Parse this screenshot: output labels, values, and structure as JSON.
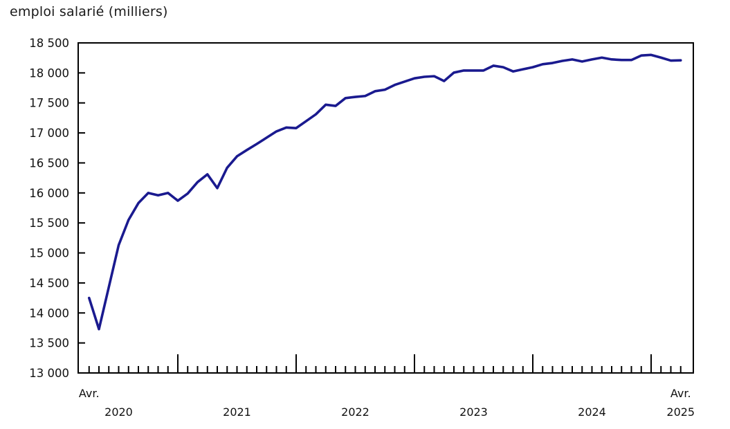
{
  "title": "emploi salarié (milliers)",
  "chart_data": {
    "type": "line",
    "title": "emploi salarié (milliers)",
    "unit": "milliers",
    "line_color": "#1a1a8f",
    "axis_color": "#000000",
    "legend": "none",
    "grid": false,
    "y_axis": {
      "min": 13000,
      "max": 18500,
      "step": 500,
      "tick_values": [
        13000,
        13500,
        14000,
        14500,
        15000,
        15500,
        16000,
        16500,
        17000,
        17500,
        18000,
        18500
      ],
      "tick_labels": [
        "13 000",
        "13 500",
        "14 000",
        "14 500",
        "15 000",
        "15 500",
        "16 000",
        "16 500",
        "17 000",
        "17 500",
        "18 000",
        "18 500"
      ]
    },
    "x_axis": {
      "frequency": "monthly",
      "start_label": "Avr.",
      "end_label": "Avr.",
      "year_labels": [
        "2020",
        "2021",
        "2022",
        "2023",
        "2024",
        "2025"
      ]
    },
    "months": [
      "2020-04",
      "2020-05",
      "2020-06",
      "2020-07",
      "2020-08",
      "2020-09",
      "2020-10",
      "2020-11",
      "2020-12",
      "2021-01",
      "2021-02",
      "2021-03",
      "2021-04",
      "2021-05",
      "2021-06",
      "2021-07",
      "2021-08",
      "2021-09",
      "2021-10",
      "2021-11",
      "2021-12",
      "2022-01",
      "2022-02",
      "2022-03",
      "2022-04",
      "2022-05",
      "2022-06",
      "2022-07",
      "2022-08",
      "2022-09",
      "2022-10",
      "2022-11",
      "2022-12",
      "2023-01",
      "2023-02",
      "2023-03",
      "2023-04",
      "2023-05",
      "2023-06",
      "2023-07",
      "2023-08",
      "2023-09",
      "2023-10",
      "2023-11",
      "2023-12",
      "2024-01",
      "2024-02",
      "2024-03",
      "2024-04",
      "2024-05",
      "2024-06",
      "2024-07",
      "2024-08",
      "2024-09",
      "2024-10",
      "2024-11",
      "2024-12",
      "2025-01",
      "2025-02",
      "2025-03",
      "2025-04"
    ],
    "series": [
      {
        "name": "emploi salarié",
        "values": [
          14250,
          13730,
          14430,
          15130,
          15550,
          15830,
          16000,
          15960,
          16000,
          15870,
          15990,
          16180,
          16310,
          16080,
          16420,
          16610,
          16715,
          16815,
          16920,
          17025,
          17090,
          17080,
          17195,
          17310,
          17470,
          17450,
          17580,
          17600,
          17615,
          17695,
          17720,
          17800,
          17855,
          17910,
          17935,
          17945,
          17865,
          18005,
          18040,
          18040,
          18040,
          18120,
          18095,
          18025,
          18060,
          18095,
          18145,
          18165,
          18200,
          18225,
          18190,
          18225,
          18255,
          18225,
          18215,
          18215,
          18290,
          18300,
          18255,
          18205,
          18210
        ]
      }
    ]
  }
}
